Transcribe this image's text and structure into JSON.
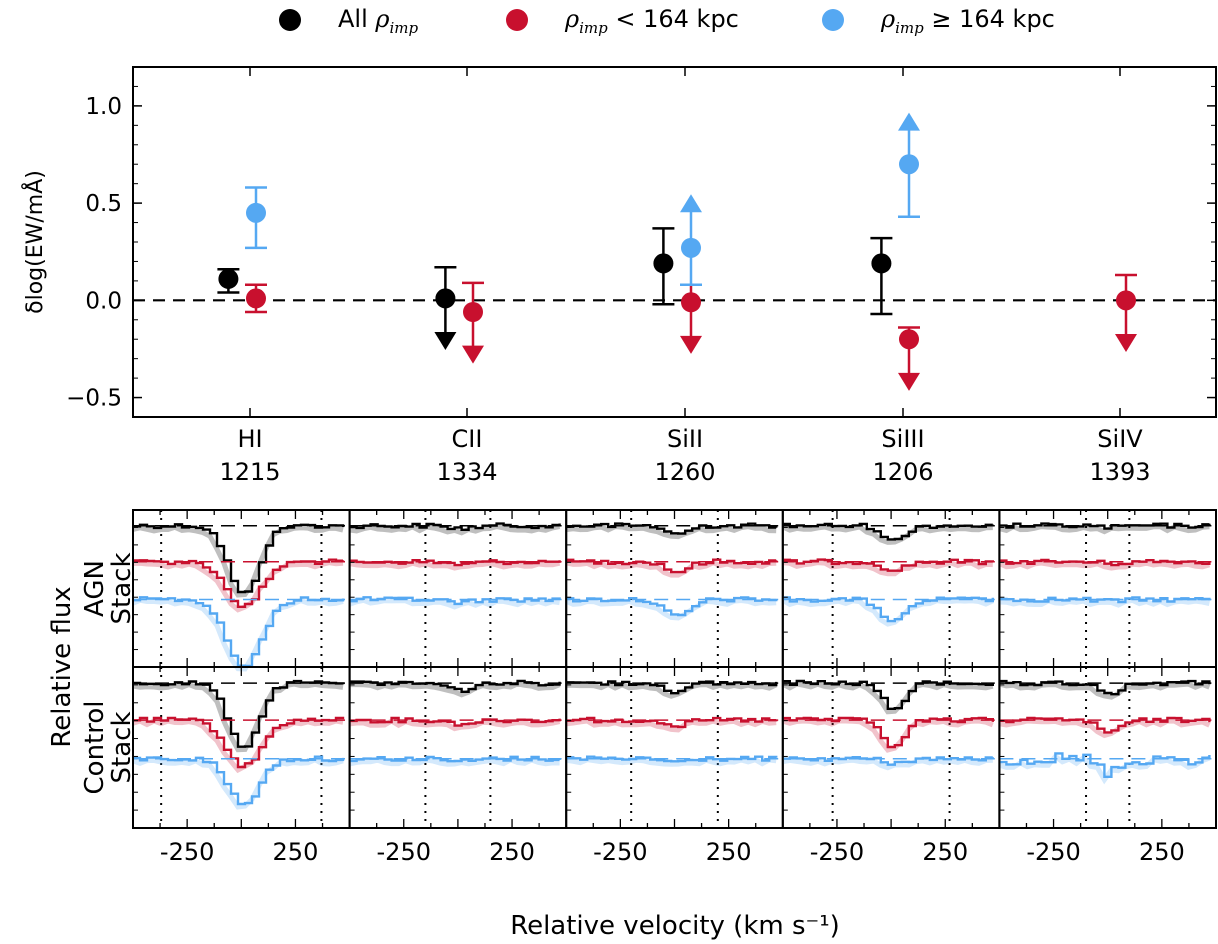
{
  "legend": {
    "items": [
      {
        "text": "All ",
        "symbol": "ρ",
        "sub": "imp",
        "tail": "",
        "color": "#000000"
      },
      {
        "text": "",
        "symbol": "ρ",
        "sub": "imp",
        "tail": " < 164 kpc",
        "color": "#c8102e"
      },
      {
        "text": "",
        "symbol": "ρ",
        "sub": "imp",
        "tail": " ≥ 164 kpc",
        "color": "#55a8f2"
      }
    ]
  },
  "chart_data": [
    {
      "type": "scatter",
      "ylabel": "δlog(EW/mÅ)",
      "ylim": [
        -0.6,
        1.2
      ],
      "yticks": [
        "1.0",
        "0.5",
        "0.0",
        "−0.5"
      ],
      "ytick_values": [
        1.0,
        0.5,
        0.0,
        -0.5
      ],
      "reference_line": 0.0,
      "categories": [
        {
          "ion": "HI",
          "wave": "1215"
        },
        {
          "ion": "CII",
          "wave": "1334"
        },
        {
          "ion": "SiII",
          "wave": "1260"
        },
        {
          "ion": "SiIII",
          "wave": "1206"
        },
        {
          "ion": "SiIV",
          "wave": "1393"
        }
      ],
      "series": [
        {
          "color": "#000000",
          "offset": -0.18,
          "points": [
            {
              "cat": 0,
              "y": 0.11,
              "lo": 0.04,
              "hi": 0.16
            },
            {
              "cat": 1,
              "y": 0.01,
              "lo": -0.24,
              "hi": 0.17,
              "limit": "upper"
            },
            {
              "cat": 2,
              "y": 0.19,
              "lo": -0.02,
              "hi": 0.37
            },
            {
              "cat": 3,
              "y": 0.19,
              "lo": -0.07,
              "hi": 0.32
            }
          ]
        },
        {
          "color": "#c8102e",
          "offset": 0.05,
          "points": [
            {
              "cat": 0,
              "y": 0.01,
              "lo": -0.06,
              "hi": 0.08
            },
            {
              "cat": 1,
              "y": -0.06,
              "lo": -0.31,
              "hi": 0.09,
              "limit": "upper"
            },
            {
              "cat": 2,
              "y": -0.01,
              "lo": -0.26,
              "hi": 0.08,
              "limit": "upper"
            },
            {
              "cat": 3,
              "y": -0.2,
              "lo": -0.45,
              "hi": -0.14,
              "limit": "upper"
            },
            {
              "cat": 4,
              "y": 0.0,
              "lo": -0.25,
              "hi": 0.13,
              "limit": "upper"
            }
          ]
        },
        {
          "color": "#55a8f2",
          "offset": 0.05,
          "points": [
            {
              "cat": 0,
              "y": 0.45,
              "lo": 0.27,
              "hi": 0.58
            },
            {
              "cat": 2,
              "y": 0.27,
              "lo": 0.08,
              "hi": 0.53,
              "limit": "lower"
            },
            {
              "cat": 3,
              "y": 0.7,
              "lo": 0.43,
              "hi": 0.95,
              "limit": "lower"
            }
          ]
        }
      ]
    },
    {
      "type": "line",
      "ylabel": "Relative flux",
      "xlabel": "Relative velocity (km s⁻¹)",
      "xlim": [
        -500,
        500
      ],
      "xticks": [
        "-250",
        "250"
      ],
      "xtick_values": [
        -250,
        250
      ],
      "rows": [
        "AGN\nStack",
        "Control\nStack"
      ],
      "row_labels": [
        [
          "AGN",
          "Stack"
        ],
        [
          "Control",
          "Stack"
        ]
      ],
      "columns": [
        "HI 1215",
        "CII 1334",
        "SiII 1260",
        "SiIII 1206",
        "SiIV 1393"
      ],
      "series": [
        {
          "color": "#000000",
          "baseline_level": 1.0
        },
        {
          "color": "#c8102e",
          "baseline_level": 0.5
        },
        {
          "color": "#55a8f2",
          "baseline_level": 0.0
        }
      ],
      "velocity_windows": [
        [
          [
            -370,
            370
          ],
          [
            -370,
            370
          ]
        ],
        [
          [
            -150,
            150
          ],
          [
            -150,
            150
          ]
        ],
        [
          [
            -200,
            200
          ],
          [
            -200,
            200
          ]
        ],
        [
          [
            -270,
            270
          ],
          [
            -270,
            270
          ]
        ],
        [
          [
            -100,
            100
          ],
          [
            -100,
            100
          ]
        ]
      ],
      "absorption": [
        [
          [
            {
              "v": 0,
              "depth": 0.8,
              "width": 70
            },
            {
              "v": 0,
              "depth": 0.52,
              "width": 80
            },
            {
              "v": 0,
              "depth": 0.78,
              "width": 80
            }
          ],
          [
            {
              "v": 0,
              "depth": 0.72,
              "width": 70
            },
            {
              "v": 0,
              "depth": 0.52,
              "width": 80
            },
            {
              "v": 0,
              "depth": 0.52,
              "width": 70
            }
          ]
        ],
        [
          [
            {
              "v": 0,
              "depth": 0.03,
              "width": 60
            },
            {
              "v": 0,
              "depth": 0.03,
              "width": 60
            },
            {
              "v": 0,
              "depth": 0.03,
              "width": 60
            }
          ],
          [
            {
              "v": 0,
              "depth": 0.08,
              "width": 60
            },
            {
              "v": 0,
              "depth": 0.04,
              "width": 60
            },
            {
              "v": 0,
              "depth": 0.03,
              "width": 60
            }
          ]
        ],
        [
          [
            {
              "v": 0,
              "depth": 0.1,
              "width": 50
            },
            {
              "v": 0,
              "depth": 0.12,
              "width": 50
            },
            {
              "v": 0,
              "depth": 0.2,
              "width": 60
            }
          ],
          [
            {
              "v": 0,
              "depth": 0.1,
              "width": 50
            },
            {
              "v": 0,
              "depth": 0.06,
              "width": 50
            },
            {
              "v": 0,
              "depth": 0.04,
              "width": 50
            }
          ]
        ],
        [
          [
            {
              "v": 0,
              "depth": 0.18,
              "width": 50
            },
            {
              "v": 0,
              "depth": 0.1,
              "width": 50
            },
            {
              "v": 0,
              "depth": 0.25,
              "width": 60
            }
          ],
          [
            {
              "v": 0,
              "depth": 0.3,
              "width": 50
            },
            {
              "v": 0,
              "depth": 0.3,
              "width": 50
            },
            {
              "v": 0,
              "depth": 0.05,
              "width": 50
            }
          ]
        ],
        [
          [
            {
              "v": 0,
              "depth": 0.02,
              "width": 50
            },
            {
              "v": 0,
              "depth": 0.02,
              "width": 50
            },
            {
              "v": 0,
              "depth": 0.02,
              "width": 50
            }
          ],
          [
            {
              "v": 0,
              "depth": 0.12,
              "width": 50
            },
            {
              "v": 0,
              "depth": 0.14,
              "width": 50
            },
            {
              "v": 0,
              "depth": 0.15,
              "width": 50
            }
          ]
        ]
      ]
    }
  ]
}
